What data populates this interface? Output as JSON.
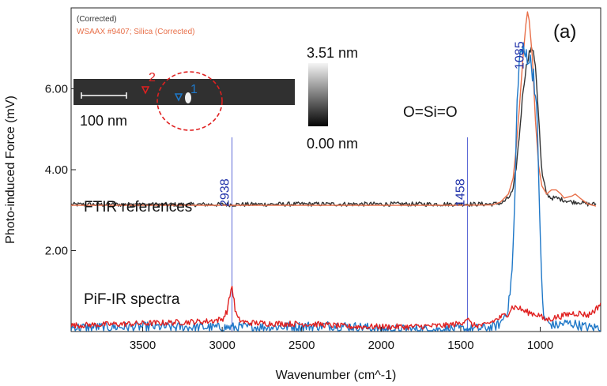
{
  "chart_data": {
    "type": "line",
    "panel_label": "(a)",
    "xlabel": "Wavenumber (cm^-1)",
    "ylabel": "Photo-induced Force (mV)",
    "xlim": [
      3950,
      620
    ],
    "ylim": [
      0,
      8.0
    ],
    "x_ticks": [
      3500,
      3000,
      2500,
      2000,
      1500,
      1000
    ],
    "y_ticks": [
      {
        "value": 2.0,
        "label": "2.00"
      },
      {
        "value": 4.0,
        "label": "4.00"
      },
      {
        "value": 6.0,
        "label": "6.00"
      }
    ],
    "legend": [
      {
        "label": "(Corrected)",
        "color": "#333333"
      },
      {
        "label": "WSAAX #9407; Silica (Corrected)",
        "color": "#e8704a"
      }
    ],
    "annotations": [
      {
        "text": "FTIR references"
      },
      {
        "text": "PiF-IR spectra"
      },
      {
        "text": "O=Si=O"
      }
    ],
    "peak_markers": [
      {
        "x": 2938,
        "label": "2938"
      },
      {
        "x": 1458,
        "label": "1458"
      },
      {
        "x": 1085,
        "label": "1085"
      }
    ],
    "series": [
      {
        "name": "FTIR reference (Corrected)",
        "color": "#333333",
        "x": [
          3950,
          3500,
          3000,
          2500,
          2000,
          1500,
          1300,
          1240,
          1200,
          1170,
          1150,
          1130,
          1110,
          1090,
          1070,
          1050,
          1030,
          1010,
          990,
          960,
          930,
          900,
          850,
          800,
          750,
          700,
          650
        ],
        "y": [
          3.14,
          3.14,
          3.14,
          3.15,
          3.15,
          3.15,
          3.15,
          3.18,
          3.3,
          3.5,
          4.1,
          4.9,
          5.9,
          6.5,
          6.9,
          7.0,
          6.6,
          5.3,
          3.9,
          3.4,
          3.3,
          3.3,
          3.25,
          3.2,
          3.2,
          3.15,
          3.15
        ],
        "noise": 0.03
      },
      {
        "name": "WSAAX #9407; Silica (Corrected)",
        "color": "#e8704a",
        "x": [
          3950,
          3500,
          3000,
          2500,
          2000,
          1500,
          1300,
          1250,
          1200,
          1170,
          1150,
          1130,
          1110,
          1090,
          1080,
          1070,
          1050,
          1030,
          1010,
          990,
          960,
          930,
          900,
          870,
          850,
          800,
          780,
          750,
          700,
          650
        ],
        "y": [
          3.12,
          3.12,
          3.12,
          3.12,
          3.12,
          3.12,
          3.13,
          3.2,
          3.4,
          3.8,
          4.6,
          5.6,
          6.7,
          7.6,
          7.9,
          7.7,
          6.8,
          5.2,
          4.1,
          3.6,
          3.4,
          3.5,
          3.5,
          3.4,
          3.3,
          3.35,
          3.4,
          3.3,
          3.15,
          3.1
        ],
        "noise": 0.0
      },
      {
        "name": "PiF-IR spectrum 1",
        "color": "#1f78c8",
        "x": [
          3950,
          3500,
          3000,
          2600,
          2300,
          2100,
          2000,
          1700,
          1500,
          1400,
          1300,
          1250,
          1200,
          1175,
          1160,
          1150,
          1140,
          1120,
          1100,
          1080,
          1060,
          1040,
          1020,
          1000,
          990,
          980,
          950,
          900,
          850,
          800,
          700,
          620
        ],
        "y": [
          0.1,
          0.12,
          0.1,
          0.12,
          0.15,
          0.1,
          0.05,
          0.05,
          0.06,
          0.07,
          0.1,
          0.2,
          0.6,
          1.6,
          3.2,
          5.0,
          6.3,
          7.0,
          6.8,
          6.9,
          6.6,
          6.4,
          5.2,
          2.5,
          1.0,
          0.4,
          0.2,
          0.15,
          0.2,
          0.2,
          0.1,
          0.1
        ],
        "noise": 0.12
      },
      {
        "name": "PiF-IR spectrum 2",
        "color": "#e02020",
        "x": [
          3950,
          3500,
          3100,
          3000,
          2970,
          2955,
          2945,
          2938,
          2930,
          2920,
          2900,
          2850,
          2700,
          2400,
          2200,
          2000,
          1800,
          1600,
          1500,
          1470,
          1458,
          1445,
          1420,
          1350,
          1300,
          1250,
          1200,
          1180,
          1150,
          1120,
          1100,
          1050,
          1000,
          980,
          950,
          900,
          850,
          800,
          750,
          700,
          650,
          620
        ],
        "y": [
          0.15,
          0.2,
          0.25,
          0.3,
          0.5,
          0.8,
          1.05,
          1.1,
          0.9,
          0.55,
          0.3,
          0.22,
          0.2,
          0.18,
          0.12,
          0.12,
          0.12,
          0.15,
          0.2,
          0.3,
          0.35,
          0.22,
          0.15,
          0.15,
          0.25,
          0.35,
          0.45,
          0.6,
          0.6,
          0.55,
          0.5,
          0.45,
          0.4,
          0.3,
          0.3,
          0.35,
          0.4,
          0.45,
          0.45,
          0.4,
          0.55,
          0.7
        ],
        "noise": 0.07
      }
    ]
  },
  "inset": {
    "scale_bar_label": "100 nm",
    "marker_1": "1",
    "marker_2": "2",
    "colorbar_max": "3.51 nm",
    "colorbar_min": "0.00 nm"
  }
}
